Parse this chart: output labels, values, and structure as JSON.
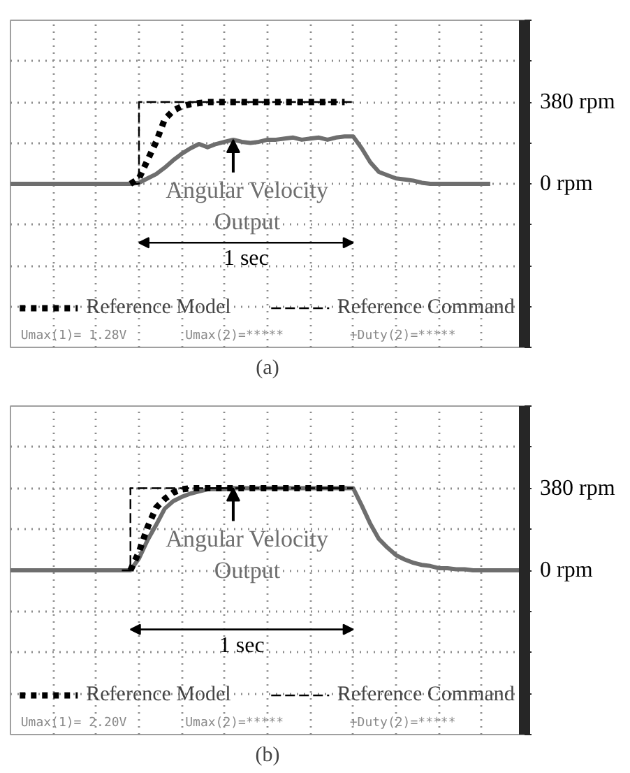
{
  "chart_data": [
    {
      "type": "line",
      "title": "(a)",
      "categories": [
        null,
        null,
        null,
        null,
        null,
        null,
        null,
        null,
        null,
        null,
        null,
        null,
        null,
        null,
        null,
        null,
        null,
        null,
        null,
        null,
        null,
        null,
        null,
        null,
        null,
        null,
        null,
        null,
        null,
        null,
        null,
        null,
        null,
        null,
        null,
        null,
        null,
        null,
        null,
        null,
        null,
        null,
        null,
        null,
        null,
        null,
        null,
        null,
        null,
        null,
        null,
        null,
        null,
        null,
        null,
        null,
        null,
        null,
        null,
        null,
        null
      ],
      "series": [
        {
          "name": "Angular Velocity Output",
          "color": "#6e6e6e",
          "line_style": "solid",
          "values": [
            0,
            0,
            0,
            0,
            0,
            0,
            0,
            0,
            0,
            0,
            0,
            0,
            0,
            0,
            0,
            5,
            25,
            45,
            75,
            110,
            140,
            165,
            185,
            170,
            185,
            195,
            205,
            195,
            190,
            195,
            205,
            205,
            210,
            215,
            205,
            210,
            215,
            205,
            215,
            220,
            220,
            165,
            100,
            55,
            40,
            25,
            20,
            15,
            5,
            0,
            0,
            0,
            0,
            0,
            0,
            0,
            0,
            null,
            null,
            null,
            null
          ]
        },
        {
          "name": "Reference Model",
          "color": "#000000",
          "line_style": "dotted",
          "values": [
            null,
            null,
            null,
            null,
            null,
            null,
            null,
            null,
            null,
            null,
            null,
            null,
            null,
            null,
            0,
            25,
            110,
            195,
            300,
            340,
            360,
            370,
            375,
            380,
            380,
            380,
            380,
            380,
            380,
            380,
            380,
            380,
            380,
            380,
            380,
            380,
            380,
            380,
            380,
            380,
            null,
            null,
            null,
            null,
            null,
            null,
            null,
            null,
            null,
            null,
            null,
            null,
            null,
            null,
            null,
            null,
            null,
            null,
            null,
            null,
            null
          ]
        },
        {
          "name": "Reference Command",
          "type": "step",
          "color": "#000000",
          "line_style": "dashed",
          "values": [
            null,
            null,
            null,
            null,
            null,
            null,
            null,
            null,
            null,
            null,
            null,
            null,
            null,
            null,
            0,
            380,
            380,
            380,
            380,
            380,
            380,
            380,
            380,
            380,
            380,
            380,
            380,
            380,
            380,
            380,
            380,
            380,
            380,
            380,
            380,
            380,
            380,
            380,
            380,
            380,
            380,
            null,
            null,
            null,
            null,
            null,
            null,
            null,
            null,
            null,
            null,
            null,
            null,
            null,
            null,
            null,
            null,
            null,
            null,
            null,
            null
          ]
        }
      ],
      "ylim": [
        -760,
        760
      ],
      "yticks": [
        {
          "value": -760,
          "label": null
        },
        {
          "value": -570,
          "label": null
        },
        {
          "value": -380,
          "label": null
        },
        {
          "value": -190,
          "label": null
        },
        {
          "value": 0,
          "label": "0 rpm"
        },
        {
          "value": 190,
          "label": null
        },
        {
          "value": 380,
          "label": "380 rpm"
        },
        {
          "value": 570,
          "label": null
        },
        {
          "value": 760,
          "label": null
        }
      ],
      "tick_labels": "y",
      "grid": true,
      "legend": "bottom",
      "annotations": [
        "1 sec",
        "Umax(1)= 1.28V",
        "Umax(2)=*****",
        "+Duty(2)=*****"
      ]
    },
    {
      "type": "line",
      "title": "(b)",
      "categories": [
        null,
        null,
        null,
        null,
        null,
        null,
        null,
        null,
        null,
        null,
        null,
        null,
        null,
        null,
        null,
        null,
        null,
        null,
        null,
        null,
        null,
        null,
        null,
        null,
        null,
        null,
        null,
        null,
        null,
        null,
        null,
        null,
        null,
        null,
        null,
        null,
        null,
        null,
        null,
        null,
        null,
        null,
        null,
        null,
        null,
        null,
        null,
        null,
        null,
        null,
        null,
        null,
        null,
        null,
        null,
        null,
        null,
        null,
        null,
        null,
        null
      ],
      "series": [
        {
          "name": "Angular Velocity Output",
          "color": "#6e6e6e",
          "line_style": "solid",
          "values": [
            0,
            0,
            0,
            0,
            0,
            0,
            0,
            0,
            0,
            0,
            0,
            0,
            0,
            0,
            0,
            55,
            140,
            210,
            285,
            320,
            340,
            355,
            365,
            375,
            375,
            375,
            380,
            380,
            380,
            380,
            380,
            380,
            380,
            380,
            380,
            380,
            380,
            380,
            380,
            380,
            380,
            300,
            215,
            145,
            105,
            70,
            50,
            35,
            25,
            20,
            10,
            10,
            5,
            5,
            0,
            0,
            0,
            0,
            0,
            0,
            0
          ]
        },
        {
          "name": "Reference Model",
          "color": "#000000",
          "line_style": "dotted",
          "values": [
            null,
            null,
            null,
            null,
            null,
            null,
            null,
            null,
            null,
            null,
            null,
            null,
            null,
            null,
            0,
            85,
            200,
            290,
            330,
            360,
            375,
            380,
            380,
            380,
            380,
            380,
            380,
            380,
            380,
            380,
            380,
            380,
            380,
            380,
            380,
            380,
            380,
            380,
            380,
            380,
            null,
            null,
            null,
            null,
            null,
            null,
            null,
            null,
            null,
            null,
            null,
            null,
            null,
            null,
            null,
            null,
            null,
            null,
            null,
            null,
            null
          ]
        },
        {
          "name": "Reference Command",
          "type": "step",
          "color": "#000000",
          "line_style": "dashed",
          "values": [
            null,
            null,
            null,
            null,
            null,
            null,
            null,
            null,
            null,
            null,
            null,
            null,
            null,
            0,
            380,
            380,
            380,
            380,
            380,
            380,
            380,
            380,
            380,
            380,
            380,
            380,
            380,
            380,
            380,
            380,
            380,
            380,
            380,
            380,
            380,
            380,
            380,
            380,
            380,
            380,
            380,
            null,
            null,
            null,
            null,
            null,
            null,
            null,
            null,
            null,
            null,
            null,
            null,
            null,
            null,
            null,
            null,
            null,
            null,
            null,
            null
          ]
        }
      ],
      "ylim": [
        -760,
        760
      ],
      "yticks": [
        {
          "value": -760,
          "label": null
        },
        {
          "value": -570,
          "label": null
        },
        {
          "value": -380,
          "label": null
        },
        {
          "value": -190,
          "label": null
        },
        {
          "value": 0,
          "label": "0 rpm"
        },
        {
          "value": 190,
          "label": null
        },
        {
          "value": 380,
          "label": "380 rpm"
        },
        {
          "value": 570,
          "label": null
        },
        {
          "value": 760,
          "label": null
        }
      ],
      "tick_labels": "y",
      "grid": true,
      "legend": "bottom",
      "annotations": [
        "1 sec",
        "Umax(1)= 2.20V",
        "Umax(2)=*****",
        "+Duty(2)=*****"
      ]
    }
  ]
}
